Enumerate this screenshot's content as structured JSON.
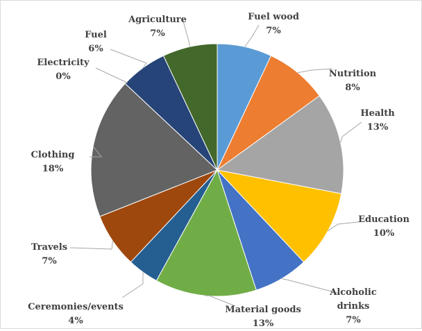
{
  "chart_data": {
    "type": "pie",
    "title": "",
    "start_angle_deg": 0,
    "direction": "clockwise",
    "slices": [
      {
        "category": "Fuel wood",
        "category_lines": [
          "Fuel wood"
        ],
        "value": 7,
        "label": "7%",
        "color": "#5b9bd5"
      },
      {
        "category": "Nutrition",
        "category_lines": [
          "Nutrition"
        ],
        "value": 8,
        "label": "8%",
        "color": "#ed7d31"
      },
      {
        "category": "Health",
        "category_lines": [
          "Health"
        ],
        "value": 13,
        "label": "13%",
        "color": "#a5a5a5"
      },
      {
        "category": "Education",
        "category_lines": [
          "Education"
        ],
        "value": 10,
        "label": "10%",
        "color": "#ffc000"
      },
      {
        "category": "Alcoholic drinks",
        "category_lines": [
          "Alcoholic",
          "drinks"
        ],
        "value": 7,
        "label": "7%",
        "color": "#4472c4"
      },
      {
        "category": "Material goods",
        "category_lines": [
          "Material goods"
        ],
        "value": 13,
        "label": "13%",
        "color": "#70ad47"
      },
      {
        "category": "Ceremonies/events",
        "category_lines": [
          "Ceremonies/events"
        ],
        "value": 4,
        "label": "4%",
        "color": "#255e91"
      },
      {
        "category": "Travels",
        "category_lines": [
          "Travels"
        ],
        "value": 7,
        "label": "7%",
        "color": "#9e480e"
      },
      {
        "category": "Clothing",
        "category_lines": [
          "Clothing"
        ],
        "value": 18,
        "label": "18%",
        "color": "#636363"
      },
      {
        "category": "Electricity",
        "category_lines": [
          "Electricity"
        ],
        "value": 0,
        "label": "0%",
        "color": "#997300"
      },
      {
        "category": "Fuel",
        "category_lines": [
          "Fuel"
        ],
        "value": 6,
        "label": "6%",
        "color": "#264478"
      },
      {
        "category": "Agriculture",
        "category_lines": [
          "Agriculture"
        ],
        "value": 7,
        "label": "7%",
        "color": "#43682b"
      }
    ]
  }
}
